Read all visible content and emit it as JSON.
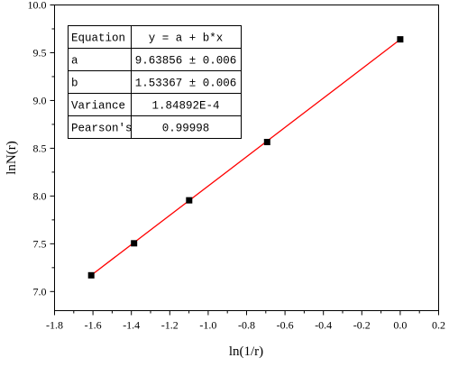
{
  "chart_data": {
    "type": "scatter",
    "xlabel": "ln(1/r)",
    "ylabel": "lnN(r)",
    "xlim": [
      -1.8,
      0.2
    ],
    "ylim": [
      6.8,
      10.0
    ],
    "xticks": [
      -1.8,
      -1.6,
      -1.4,
      -1.2,
      -1.0,
      -0.8,
      -0.6,
      -0.4,
      -0.2,
      0.0,
      0.2
    ],
    "xtick_labels": [
      "-1.8",
      "-1.6",
      "-1.4",
      "-1.2",
      "-1.0",
      "-0.8",
      "-0.6",
      "-0.4",
      "-0.2",
      "0.0",
      "0.2"
    ],
    "yticks": [
      7.0,
      7.5,
      8.0,
      8.5,
      9.0,
      9.5,
      10.0
    ],
    "ytick_labels": [
      "7.0",
      "7.5",
      "8.0",
      "8.5",
      "9.0",
      "9.5",
      "10.0"
    ],
    "points": [
      {
        "x": -1.609,
        "y": 7.17
      },
      {
        "x": -1.386,
        "y": 7.505
      },
      {
        "x": -1.099,
        "y": 7.955
      },
      {
        "x": -0.693,
        "y": 8.565
      },
      {
        "x": 0.0,
        "y": 9.64
      }
    ],
    "fit": {
      "intercept": 9.63856,
      "slope": 1.53367,
      "x_range": [
        -1.609,
        0.0
      ]
    },
    "marker_color": "#000000",
    "line_color": "#ff0000",
    "grid": false,
    "table": {
      "rows": [
        {
          "label": "Equation",
          "value": "y = a + b*x"
        },
        {
          "label": "a",
          "value": "9.63856 ± 0.006"
        },
        {
          "label": "b",
          "value": "1.53367 ± 0.006"
        },
        {
          "label": "Variance",
          "value": "1.84892E-4"
        },
        {
          "label": "Pearson's",
          "value": "0.99998"
        }
      ],
      "placement": "top-left"
    }
  }
}
